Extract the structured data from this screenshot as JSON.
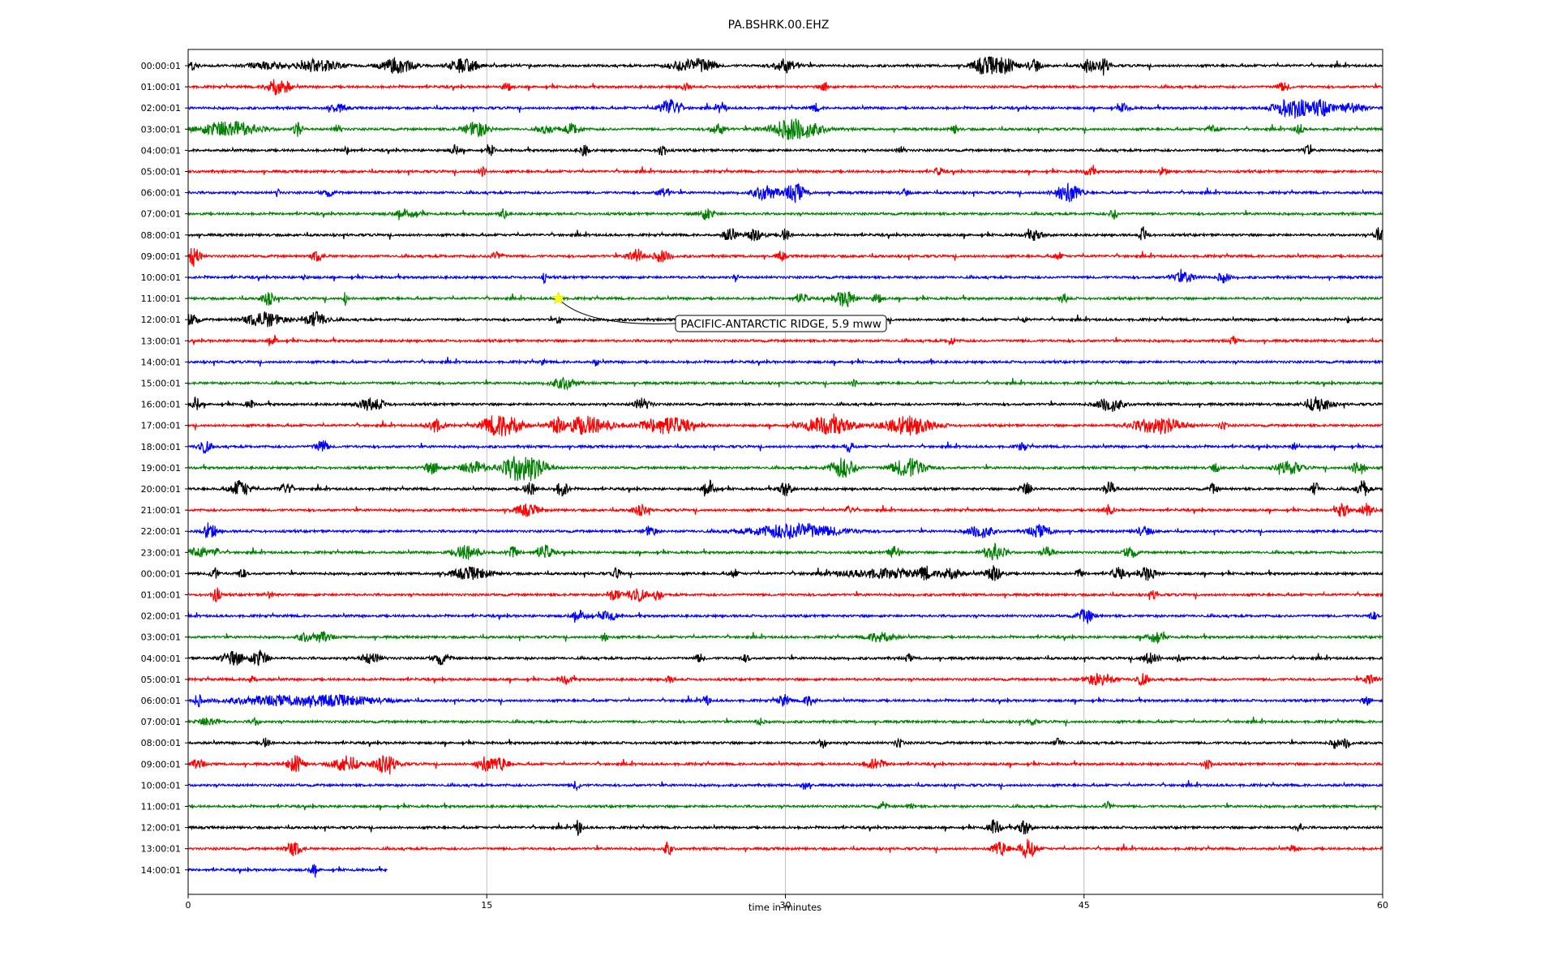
{
  "page": {
    "title": "PA.BSHRK.00.EHZ"
  },
  "chart_data": {
    "type": "line",
    "title": "PA.BSHRK.00.EHZ",
    "xlabel": "time in minutes",
    "ylabel": "",
    "xlim": [
      0,
      60
    ],
    "xticks": [
      0,
      15,
      30,
      45,
      60
    ],
    "grid": "vertical lines at 15, 30, 45",
    "color_cycle": [
      "#000000",
      "#ff0000",
      "#0000ff",
      "#008000"
    ],
    "row_labels": [
      "00:00:01",
      "01:00:01",
      "02:00:01",
      "03:00:01",
      "04:00:01",
      "05:00:01",
      "06:00:01",
      "07:00:01",
      "08:00:01",
      "09:00:01",
      "10:00:01",
      "11:00:01",
      "12:00:01",
      "13:00:01",
      "14:00:01",
      "15:00:01",
      "16:00:01",
      "17:00:01",
      "18:00:01",
      "19:00:01",
      "20:00:01",
      "21:00:01",
      "22:00:01",
      "23:00:01",
      "00:00:01",
      "01:00:01",
      "02:00:01",
      "03:00:01",
      "04:00:01",
      "05:00:01",
      "06:00:01",
      "07:00:01",
      "08:00:01",
      "09:00:01",
      "10:00:01",
      "11:00:01",
      "12:00:01",
      "13:00:01",
      "14:00:01"
    ],
    "last_row_end_minute": 10,
    "annotation": {
      "text": "PACIFIC-ANTARCTIC RIDGE, 5.9 mww",
      "row": 11,
      "minute": 18.6,
      "marker": "star",
      "marker_color": "#ffff00"
    },
    "bursts": [
      [
        [
          0,
          0.4,
          6
        ],
        [
          4,
          1,
          4
        ],
        [
          6.5,
          1,
          7
        ],
        [
          10.5,
          0.8,
          9
        ],
        [
          13.5,
          0.4,
          8
        ],
        [
          14.2,
          0.4,
          7
        ],
        [
          25,
          0.8,
          7
        ],
        [
          26,
          0.5,
          7
        ],
        [
          30,
          0.6,
          8
        ],
        [
          40,
          0.6,
          10
        ],
        [
          41,
          0.6,
          9
        ],
        [
          42.5,
          0.3,
          8
        ],
        [
          45.2,
          0.3,
          9
        ],
        [
          46,
          0.3,
          8
        ]
      ],
      [
        [
          4.4,
          0.4,
          12
        ],
        [
          5,
          0.2,
          5
        ],
        [
          16,
          0.2,
          5
        ],
        [
          25,
          0.2,
          4
        ],
        [
          32,
          0.2,
          6
        ],
        [
          55,
          0.3,
          5
        ]
      ],
      [
        [
          7.5,
          0.4,
          5
        ],
        [
          24.2,
          0.5,
          11
        ],
        [
          26.8,
          0.2,
          7
        ],
        [
          31.5,
          0.2,
          5
        ],
        [
          47,
          0.3,
          5
        ],
        [
          55.5,
          0.9,
          12
        ],
        [
          57,
          0.5,
          9
        ],
        [
          58.5,
          0.6,
          6
        ]
      ],
      [
        [
          2,
          1.4,
          10
        ],
        [
          5.5,
          0.2,
          9
        ],
        [
          7.5,
          0.2,
          5
        ],
        [
          14.5,
          0.6,
          9
        ],
        [
          18,
          0.4,
          5
        ],
        [
          19.3,
          0.4,
          7
        ],
        [
          26.6,
          0.4,
          6
        ],
        [
          30.5,
          1.2,
          13
        ],
        [
          38.5,
          0.2,
          5
        ],
        [
          51.5,
          0.3,
          5
        ],
        [
          55.8,
          0.2,
          7
        ]
      ],
      [
        [
          8,
          0.2,
          4
        ],
        [
          13.4,
          0.2,
          6
        ],
        [
          15.2,
          0.2,
          6
        ],
        [
          19.9,
          0.2,
          7
        ],
        [
          23.8,
          0.2,
          8
        ],
        [
          35.8,
          0.2,
          4
        ],
        [
          56.2,
          0.2,
          6
        ]
      ],
      [
        [
          14.8,
          0.2,
          5
        ],
        [
          37.7,
          0.2,
          5
        ],
        [
          45.3,
          0.3,
          5
        ],
        [
          49,
          0.2,
          5
        ]
      ],
      [
        [
          4.5,
          0.1,
          5
        ],
        [
          7,
          0.3,
          4
        ],
        [
          23.9,
          0.3,
          6
        ],
        [
          29,
          0.6,
          9
        ],
        [
          30.5,
          0.5,
          11
        ],
        [
          36,
          0.2,
          4
        ],
        [
          44.2,
          0.6,
          12
        ]
      ],
      [
        [
          11,
          0.6,
          5
        ],
        [
          15.8,
          0.2,
          6
        ],
        [
          26,
          0.4,
          7
        ],
        [
          46.5,
          0.2,
          6
        ]
      ],
      [
        [
          27.2,
          0.3,
          9
        ],
        [
          28.5,
          0.4,
          8
        ],
        [
          30,
          0.2,
          8
        ],
        [
          42.5,
          0.4,
          6
        ],
        [
          48,
          0.2,
          9
        ],
        [
          59.8,
          0.2,
          10
        ]
      ],
      [
        [
          0.3,
          0.3,
          12
        ],
        [
          6.5,
          0.3,
          6
        ],
        [
          15.5,
          0.3,
          5
        ],
        [
          22.5,
          0.4,
          9
        ],
        [
          23.8,
          0.4,
          7
        ],
        [
          29.8,
          0.2,
          6
        ],
        [
          43.7,
          0.2,
          5
        ]
      ],
      [
        [
          5.8,
          0.1,
          4
        ],
        [
          17.9,
          0.1,
          6
        ],
        [
          27.5,
          0.1,
          5
        ],
        [
          50,
          0.6,
          6
        ],
        [
          52,
          0.3,
          6
        ]
      ],
      [
        [
          4,
          0.3,
          8
        ],
        [
          7.9,
          0.1,
          9
        ],
        [
          30.8,
          0.3,
          6
        ],
        [
          33,
          0.5,
          10
        ],
        [
          34.6,
          0.2,
          6
        ],
        [
          44,
          0.2,
          6
        ]
      ],
      [
        [
          0.2,
          0.3,
          8
        ],
        [
          3.8,
          0.9,
          9
        ],
        [
          6.4,
          0.6,
          9
        ],
        [
          18.6,
          0.1,
          7
        ],
        [
          42,
          0.1,
          4
        ],
        [
          58.3,
          0.1,
          5
        ]
      ],
      [
        [
          4.3,
          0.2,
          6
        ],
        [
          38.3,
          0.2,
          5
        ],
        [
          52.5,
          0.2,
          4
        ]
      ],
      [
        [
          17.8,
          0.1,
          4
        ],
        [
          20.5,
          0.1,
          5
        ],
        [
          37.3,
          0.1,
          4
        ]
      ],
      [
        [
          18.9,
          0.6,
          7
        ],
        [
          33.5,
          0.2,
          4
        ]
      ],
      [
        [
          0.4,
          0.2,
          8
        ],
        [
          3.1,
          0.2,
          5
        ],
        [
          9.2,
          0.6,
          8
        ],
        [
          22.8,
          0.4,
          7
        ],
        [
          46.3,
          0.6,
          9
        ],
        [
          56.8,
          0.6,
          9
        ]
      ],
      [
        [
          12.4,
          0.4,
          8
        ],
        [
          15.3,
          0.6,
          10
        ],
        [
          16.2,
          0.6,
          12
        ],
        [
          18.5,
          0.3,
          9
        ],
        [
          20,
          1.2,
          11
        ],
        [
          24,
          1.2,
          11
        ],
        [
          32.2,
          1.2,
          11
        ],
        [
          36.2,
          1.2,
          11
        ],
        [
          48.7,
          1.2,
          10
        ],
        [
          52,
          0.2,
          4
        ]
      ],
      [
        [
          0.8,
          0.3,
          8
        ],
        [
          6.7,
          0.3,
          8
        ],
        [
          33.2,
          0.2,
          6
        ],
        [
          41.9,
          0.2,
          6
        ],
        [
          55.6,
          0.2,
          5
        ]
      ],
      [
        [
          12.3,
          0.4,
          7
        ],
        [
          14.3,
          0.6,
          8
        ],
        [
          16.5,
          0.8,
          12
        ],
        [
          17.3,
          0.8,
          10
        ],
        [
          32.9,
          0.6,
          12
        ],
        [
          36.2,
          0.8,
          12
        ],
        [
          51.6,
          0.2,
          5
        ],
        [
          55.3,
          0.6,
          8
        ],
        [
          58.8,
          0.3,
          9
        ]
      ],
      [
        [
          2.6,
          0.5,
          10
        ],
        [
          4.9,
          0.3,
          7
        ],
        [
          17.2,
          0.3,
          8
        ],
        [
          18.8,
          0.3,
          9
        ],
        [
          26.2,
          0.3,
          10
        ],
        [
          30,
          0.3,
          9
        ],
        [
          42.1,
          0.3,
          8
        ],
        [
          46.3,
          0.3,
          8
        ],
        [
          51.5,
          0.2,
          6
        ],
        [
          56.6,
          0.2,
          8
        ],
        [
          59,
          0.3,
          10
        ]
      ],
      [
        [
          17,
          0.6,
          7
        ],
        [
          22.7,
          0.4,
          6
        ],
        [
          33.2,
          0.2,
          5
        ],
        [
          46.2,
          0.3,
          6
        ],
        [
          58,
          0.3,
          9
        ],
        [
          59.2,
          0.3,
          9
        ]
      ],
      [
        [
          1.1,
          0.3,
          11
        ],
        [
          23.2,
          0.3,
          6
        ],
        [
          30.5,
          2.2,
          9
        ],
        [
          39.8,
          0.6,
          8
        ],
        [
          42.8,
          0.6,
          7
        ],
        [
          48,
          0.4,
          5
        ]
      ],
      [
        [
          0.5,
          0.5,
          7
        ],
        [
          1.4,
          0.2,
          5
        ],
        [
          14,
          0.6,
          9
        ],
        [
          16.3,
          0.3,
          7
        ],
        [
          17.9,
          0.4,
          9
        ],
        [
          35.5,
          0.3,
          7
        ],
        [
          40.5,
          0.5,
          10
        ],
        [
          43.2,
          0.3,
          6
        ],
        [
          47.3,
          0.3,
          8
        ]
      ],
      [
        [
          1.3,
          0.2,
          8
        ],
        [
          2.7,
          0.2,
          6
        ],
        [
          14.2,
          1,
          7
        ],
        [
          21.5,
          0.2,
          6
        ],
        [
          27.4,
          0.2,
          6
        ],
        [
          35,
          2.5,
          5
        ],
        [
          37,
          0.2,
          8
        ],
        [
          38.3,
          0.5,
          7
        ],
        [
          40.5,
          0.4,
          10
        ],
        [
          44.8,
          0.2,
          5
        ],
        [
          46.7,
          0.3,
          7
        ],
        [
          48.2,
          0.4,
          8
        ]
      ],
      [
        [
          1.4,
          0.2,
          9
        ],
        [
          4.1,
          0.2,
          4
        ],
        [
          21.4,
          0.3,
          8
        ],
        [
          22.5,
          0.4,
          10
        ],
        [
          23.6,
          0.2,
          8
        ],
        [
          48.5,
          0.2,
          5
        ]
      ],
      [
        [
          19.7,
          0.4,
          6
        ],
        [
          21.1,
          0.4,
          6
        ],
        [
          45.1,
          0.4,
          8
        ],
        [
          59.5,
          0.2,
          5
        ]
      ],
      [
        [
          5.8,
          0.3,
          5
        ],
        [
          6.7,
          0.5,
          6
        ],
        [
          20.9,
          0.2,
          5
        ],
        [
          34.8,
          0.6,
          7
        ],
        [
          48.6,
          0.4,
          8
        ]
      ],
      [
        [
          2.3,
          0.6,
          8
        ],
        [
          3.6,
          0.4,
          10
        ],
        [
          9.2,
          0.5,
          6
        ],
        [
          12.7,
          0.4,
          7
        ],
        [
          25.7,
          0.2,
          5
        ],
        [
          28,
          0.2,
          4
        ],
        [
          36.2,
          0.2,
          4
        ],
        [
          48.3,
          0.4,
          7
        ],
        [
          49.7,
          0.2,
          4
        ]
      ],
      [
        [
          3.2,
          0.2,
          5
        ],
        [
          19,
          0.3,
          5
        ],
        [
          24.2,
          0.2,
          4
        ],
        [
          45.8,
          0.7,
          7
        ],
        [
          47.9,
          0.3,
          7
        ],
        [
          59.4,
          0.3,
          7
        ]
      ],
      [
        [
          0.5,
          0.2,
          7
        ],
        [
          4.5,
          2.5,
          5
        ],
        [
          7.7,
          2,
          5
        ],
        [
          26,
          0.2,
          6
        ],
        [
          29.9,
          0.3,
          7
        ],
        [
          31.2,
          0.3,
          6
        ],
        [
          59.2,
          0.2,
          5
        ]
      ],
      [
        [
          1,
          0.5,
          5
        ],
        [
          3.4,
          0.2,
          4
        ],
        [
          28.7,
          0.2,
          4
        ],
        [
          42.4,
          0.2,
          4
        ]
      ],
      [
        [
          3.9,
          0.2,
          6
        ],
        [
          31.9,
          0.2,
          6
        ],
        [
          35.7,
          0.2,
          5
        ],
        [
          43.7,
          0.2,
          5
        ],
        [
          57.6,
          0.2,
          6
        ],
        [
          58.2,
          0.2,
          7
        ]
      ],
      [
        [
          0.5,
          0.3,
          6
        ],
        [
          5.4,
          0.4,
          10
        ],
        [
          7.9,
          0.6,
          10
        ],
        [
          9.9,
          0.6,
          10
        ],
        [
          14.9,
          0.4,
          9
        ],
        [
          15.7,
          0.4,
          8
        ],
        [
          34.5,
          0.5,
          6
        ],
        [
          51.2,
          0.2,
          8
        ]
      ],
      [
        [
          19.5,
          0.2,
          5
        ],
        [
          31,
          0.2,
          5
        ]
      ],
      [
        [
          34.9,
          0.2,
          5
        ],
        [
          36.3,
          0.2,
          3
        ],
        [
          46.2,
          0.2,
          6
        ]
      ],
      [
        [
          19.6,
          0.2,
          9
        ],
        [
          40.5,
          0.3,
          9
        ],
        [
          42,
          0.3,
          9
        ],
        [
          55.8,
          0.2,
          4
        ]
      ],
      [
        [
          5.3,
          0.4,
          8
        ],
        [
          24.1,
          0.2,
          8
        ],
        [
          40.8,
          0.4,
          9
        ],
        [
          42.2,
          0.4,
          12
        ],
        [
          55.5,
          0.2,
          4
        ]
      ],
      [
        [
          6.3,
          0.2,
          6
        ]
      ]
    ]
  }
}
